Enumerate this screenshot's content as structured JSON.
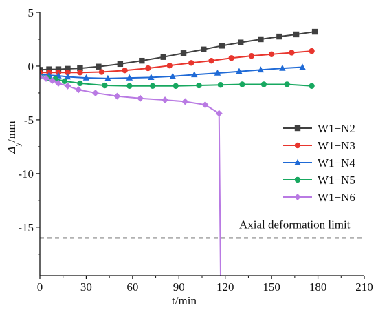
{
  "chart_data": {
    "type": "line",
    "xlabel": "t/min",
    "ylabel_main": "Δ",
    "ylabel_sub": "y",
    "ylabel_tail": "/mm",
    "xlim": [
      0,
      210
    ],
    "ylim": [
      -19.5,
      5
    ],
    "xticks": [
      0,
      30,
      60,
      90,
      120,
      150,
      180,
      210
    ],
    "yticks": [
      5,
      0,
      -5,
      -10,
      -15
    ],
    "grid": false,
    "legend_position": "right-middle",
    "series": [
      {
        "name": "W1−N2",
        "color": "#404040",
        "marker": "square",
        "x": [
          0,
          6,
          12,
          18,
          26,
          38,
          52,
          66,
          80,
          93,
          106,
          118,
          130,
          143,
          155,
          166,
          178
        ],
        "y": [
          -0.35,
          -0.3,
          -0.3,
          -0.25,
          -0.2,
          -0.05,
          0.2,
          0.5,
          0.85,
          1.2,
          1.55,
          1.9,
          2.2,
          2.5,
          2.75,
          2.95,
          3.2
        ]
      },
      {
        "name": "W1−N3",
        "color": "#e8362e",
        "marker": "circle",
        "x": [
          0,
          6,
          12,
          18,
          26,
          40,
          55,
          70,
          84,
          98,
          111,
          124,
          137,
          150,
          163,
          176
        ],
        "y": [
          -0.6,
          -0.6,
          -0.6,
          -0.6,
          -0.6,
          -0.55,
          -0.4,
          -0.2,
          0.05,
          0.3,
          0.5,
          0.75,
          0.95,
          1.1,
          1.25,
          1.4
        ]
      },
      {
        "name": "W1−N4",
        "color": "#1f6ad6",
        "marker": "triangle",
        "x": [
          0,
          6,
          12,
          18,
          30,
          44,
          58,
          72,
          86,
          100,
          115,
          129,
          143,
          157,
          170
        ],
        "y": [
          -0.8,
          -0.85,
          -0.9,
          -1.0,
          -1.1,
          -1.15,
          -1.1,
          -1.05,
          -0.95,
          -0.8,
          -0.65,
          -0.5,
          -0.35,
          -0.2,
          -0.1
        ]
      },
      {
        "name": "W1−N5",
        "color": "#18a860",
        "marker": "circle",
        "x": [
          0,
          5,
          10,
          16,
          26,
          42,
          58,
          73,
          88,
          103,
          117,
          131,
          145,
          160,
          176
        ],
        "y": [
          -1.0,
          -1.1,
          -1.2,
          -1.4,
          -1.6,
          -1.8,
          -1.85,
          -1.85,
          -1.85,
          -1.8,
          -1.75,
          -1.7,
          -1.7,
          -1.7,
          -1.85
        ]
      },
      {
        "name": "W1−N6",
        "color": "#b97ae3",
        "marker": "diamond",
        "x": [
          0,
          4,
          8,
          12,
          18,
          25,
          36,
          50,
          65,
          81,
          94,
          107,
          116
        ],
        "y": [
          -1.0,
          -1.15,
          -1.35,
          -1.6,
          -1.85,
          -2.2,
          -2.5,
          -2.8,
          -3.0,
          -3.15,
          -3.3,
          -3.6,
          -4.4
        ]
      }
    ],
    "n6_drop": {
      "x": 117,
      "y_end": -19.5
    },
    "reference_line": {
      "y": -16,
      "label": "Axial deformation limit",
      "color": "#666666",
      "style": "dashed"
    }
  }
}
